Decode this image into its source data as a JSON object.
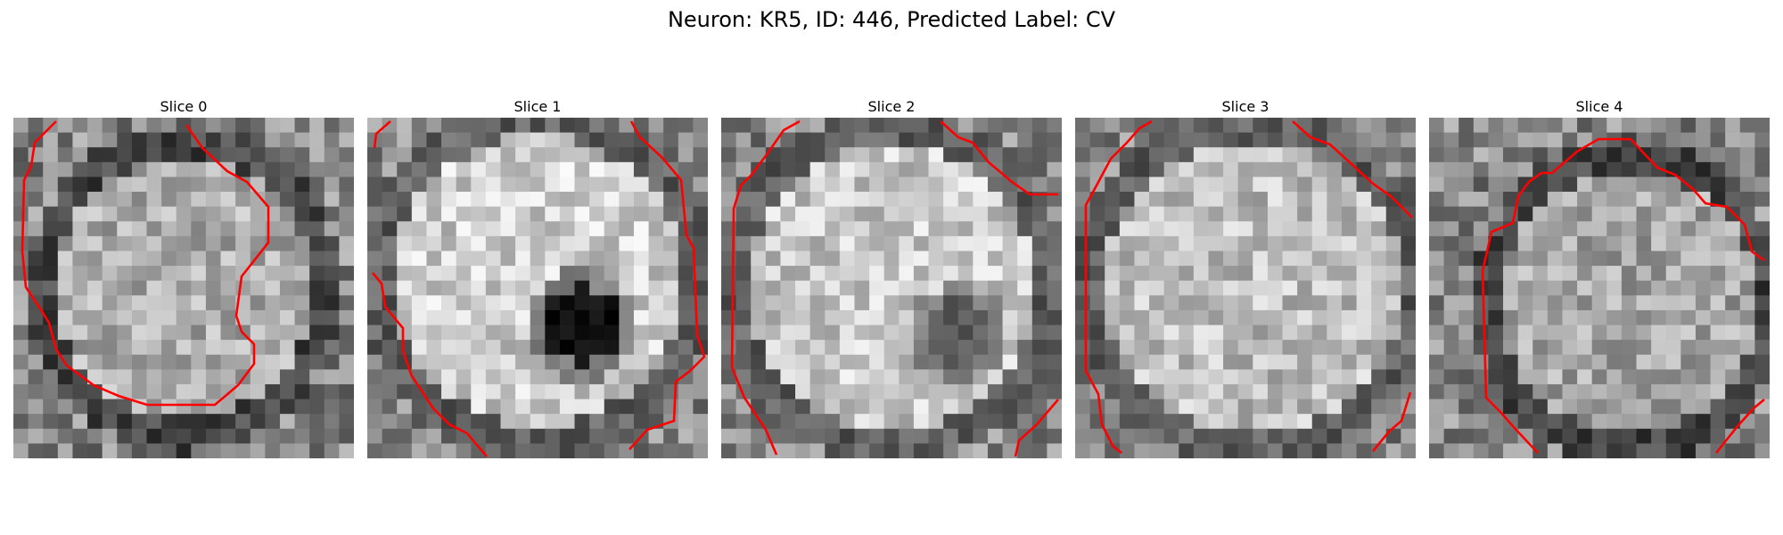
{
  "figure": {
    "title": "Neuron: KR5, ID: 446, Predicted Label: CV"
  },
  "slices": [
    {
      "title": "Slice 0"
    },
    {
      "title": "Slice 1"
    },
    {
      "title": "Slice 2"
    },
    {
      "title": "Slice 3"
    },
    {
      "title": "Slice 4"
    }
  ],
  "colors": {
    "contour": "#ff0000",
    "background": "#ffffff"
  }
}
